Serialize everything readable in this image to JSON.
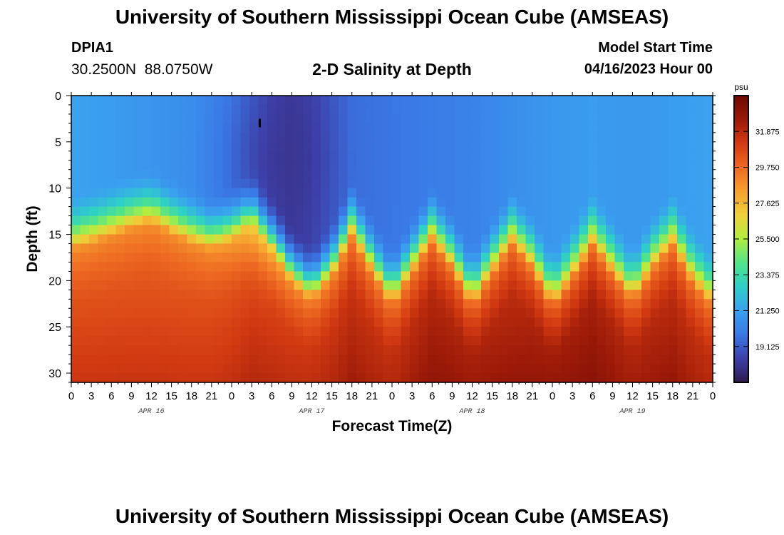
{
  "header": {
    "title": "University of Southern Mississippi Ocean Cube (AMSEAS)",
    "station_id": "DPIA1",
    "coordinates": "30.2500N  88.0750W",
    "plot_title": "2-D Salinity at Depth",
    "model_start_label": "Model Start Time",
    "model_start_value": "04/16/2023 Hour 00"
  },
  "footer": {
    "title": "University of Southern Mississippi Ocean Cube (AMSEAS)"
  },
  "chart_data": {
    "type": "heatmap",
    "title": "2-D Salinity at Depth",
    "xlabel": "Forecast Time(Z)",
    "ylabel": "Depth (ft)",
    "x_range_hours": [
      0,
      96
    ],
    "y_range_ft": [
      0,
      31
    ],
    "y_ticks": [
      0,
      5,
      10,
      15,
      20,
      25,
      30
    ],
    "x_tick_labels": [
      "0",
      "3",
      "6",
      "9",
      "12",
      "15",
      "18",
      "21",
      "0",
      "3",
      "6",
      "9",
      "12",
      "15",
      "18",
      "21",
      "0",
      "3",
      "6",
      "9",
      "12",
      "15",
      "18",
      "21",
      "0",
      "3",
      "6",
      "9",
      "12",
      "15",
      "18",
      "21",
      "0"
    ],
    "day_labels": [
      {
        "label": "APR 16",
        "hour": 12
      },
      {
        "label": "APR 17",
        "hour": 36
      },
      {
        "label": "APR 18",
        "hour": 60
      },
      {
        "label": "APR 19",
        "hour": 84
      }
    ],
    "colorbar": {
      "unit": "psu",
      "min": 17.0,
      "max": 34.0,
      "ticks": [
        "31.875",
        "29.750",
        "27.625",
        "25.500",
        "23.375",
        "21.250",
        "19.125"
      ],
      "tick_values": [
        31.875,
        29.75,
        27.625,
        25.5,
        23.375,
        21.25,
        19.125
      ],
      "stops": [
        "#301a4e",
        "#3d3fa8",
        "#3a78e6",
        "#3aa1ef",
        "#2ecfc8",
        "#52e48a",
        "#b0ee40",
        "#f0d03a",
        "#f7a030",
        "#ee6a22",
        "#d23a12",
        "#9a1908",
        "#6e0805"
      ]
    },
    "halocline_depth_ft": {
      "hours": [
        0,
        3,
        6,
        9,
        12,
        15,
        18,
        21,
        24,
        27,
        30,
        33,
        36,
        39,
        42,
        45,
        48,
        51,
        54,
        57,
        60,
        63,
        66,
        69,
        72,
        75,
        78,
        81,
        84,
        87,
        90,
        93,
        96
      ],
      "values": [
        16.5,
        15.8,
        15.0,
        14.2,
        13.6,
        14.8,
        15.8,
        16.5,
        15.5,
        13.5,
        16.5,
        20.0,
        22.0,
        19.5,
        15.0,
        19.0,
        22.5,
        19.0,
        15.5,
        18.5,
        22.5,
        19.0,
        15.8,
        18.5,
        22.5,
        19.5,
        16.0,
        19.0,
        22.0,
        18.5,
        16.0,
        20.0,
        22.5
      ]
    },
    "surface_salinity_psu": {
      "hours": [
        0,
        6,
        12,
        18,
        24,
        30,
        33,
        36,
        42,
        48,
        54,
        60,
        66,
        72,
        78,
        84,
        90,
        96
      ],
      "values": [
        21.3,
        21.1,
        20.8,
        20.6,
        19.9,
        18.6,
        18.2,
        18.5,
        19.6,
        19.8,
        20.0,
        20.2,
        20.6,
        20.9,
        21.1,
        20.9,
        21.1,
        21.3
      ]
    },
    "dark_plume": {
      "center_hour": 31,
      "center_depth_ft": 7,
      "min_psu": 17.9
    },
    "bottom_salinity_psu": {
      "hours": [
        0,
        12,
        24,
        36,
        48,
        60,
        66,
        72,
        84,
        96
      ],
      "values": [
        31.5,
        31.3,
        31.6,
        32.3,
        32.6,
        33.2,
        32.8,
        33.4,
        33.0,
        32.6
      ]
    }
  }
}
